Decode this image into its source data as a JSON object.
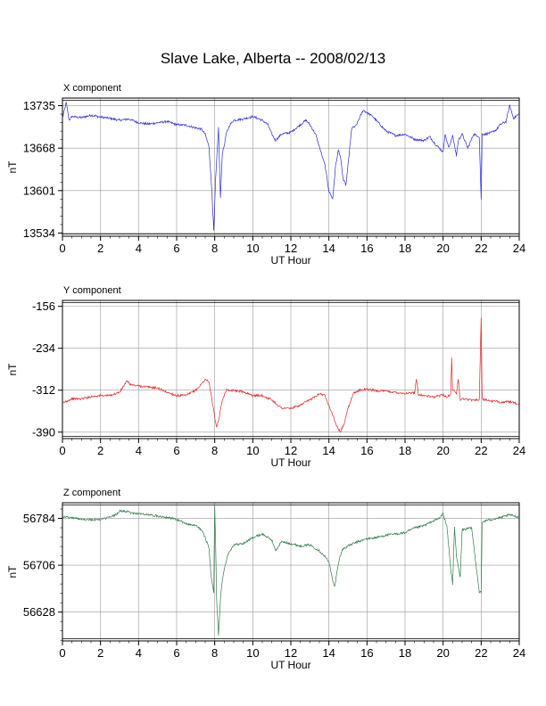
{
  "page": {
    "title": "Slave Lake, Alberta -- 2008/02/13"
  },
  "chart_data": [
    {
      "type": "line",
      "panel_title": "X component",
      "xlabel": "UT Hour",
      "ylabel": "nT",
      "xlim": [
        0,
        24
      ],
      "ylim": [
        13529,
        13747
      ],
      "xticks": [
        "0",
        "2",
        "4",
        "6",
        "8",
        "10",
        "12",
        "14",
        "16",
        "18",
        "20",
        "22",
        "24"
      ],
      "yticks": [
        "13534",
        "13601",
        "13668",
        "13735"
      ],
      "grid": true,
      "color": "#2b2bdc",
      "series": [
        {
          "x": [
            0,
            0.2,
            0.35,
            0.5,
            1,
            1.5,
            2,
            2.5,
            3,
            3.5,
            4,
            4.5,
            5,
            5.5,
            6,
            6.5,
            7,
            7.3,
            7.5,
            7.7,
            7.85,
            7.95,
            8.05,
            8.2,
            8.3,
            8.4,
            8.5,
            8.6,
            8.8,
            9,
            9.5,
            10,
            10.5,
            10.8,
            11,
            11.2,
            11.5,
            12,
            12.5,
            12.8,
            13,
            13.3,
            13.6,
            13.8,
            14,
            14.2,
            14.35,
            14.5,
            14.6,
            14.75,
            14.9,
            15,
            15.2,
            15.4,
            15.6,
            15.8,
            16,
            16.3,
            16.6,
            17,
            17.5,
            18,
            18.5,
            19,
            19.3,
            19.6,
            20,
            20.1,
            20.3,
            20.5,
            20.7,
            20.8,
            21,
            21.3,
            21.6,
            21.9,
            22,
            22.05,
            22.2,
            22.5,
            22.8,
            23,
            23.3,
            23.5,
            23.7,
            24
          ],
          "values": [
            13715,
            13740,
            13712,
            13718,
            13716,
            13720,
            13717,
            13715,
            13712,
            13714,
            13708,
            13706,
            13708,
            13710,
            13705,
            13704,
            13700,
            13698,
            13690,
            13670,
            13600,
            13537,
            13620,
            13700,
            13588,
            13660,
            13672,
            13690,
            13705,
            13712,
            13714,
            13718,
            13712,
            13705,
            13690,
            13680,
            13690,
            13693,
            13705,
            13712,
            13705,
            13690,
            13660,
            13640,
            13600,
            13588,
            13640,
            13665,
            13655,
            13618,
            13610,
            13640,
            13700,
            13702,
            13715,
            13728,
            13724,
            13718,
            13708,
            13695,
            13688,
            13690,
            13682,
            13680,
            13686,
            13674,
            13662,
            13690,
            13668,
            13688,
            13656,
            13680,
            13690,
            13668,
            13690,
            13686,
            13586,
            13690,
            13690,
            13692,
            13697,
            13705,
            13710,
            13735,
            13715,
            13722
          ]
        }
      ]
    },
    {
      "type": "line",
      "panel_title": "Y component",
      "xlabel": "UT Hour",
      "ylabel": "nT",
      "xlim": [
        0,
        24
      ],
      "ylim": [
        -402,
        -145
      ],
      "xticks": [
        "0",
        "2",
        "4",
        "6",
        "8",
        "10",
        "12",
        "14",
        "16",
        "18",
        "20",
        "22",
        "24"
      ],
      "yticks": [
        "-156",
        "-234",
        "-312",
        "-390"
      ],
      "grid": true,
      "color": "#e02828",
      "series": [
        {
          "x": [
            0,
            0.5,
            1,
            1.5,
            2,
            2.5,
            3,
            3.2,
            3.4,
            3.6,
            4,
            4.5,
            5,
            5.5,
            6,
            6.5,
            7,
            7.2,
            7.5,
            7.7,
            7.9,
            8.1,
            8.25,
            8.4,
            8.6,
            9,
            9.5,
            10,
            10.5,
            11,
            11.5,
            12,
            12.5,
            13,
            13.5,
            13.8,
            14,
            14.2,
            14.4,
            14.6,
            14.8,
            15,
            15.3,
            15.6,
            16,
            16.5,
            17,
            17.5,
            18,
            18.5,
            18.6,
            18.7,
            19,
            19.5,
            20,
            20.2,
            20.4,
            20.45,
            20.5,
            20.7,
            20.8,
            20.9,
            21,
            21.5,
            21.9,
            22,
            22.05,
            22.2,
            22.5,
            23,
            23.5,
            24
          ],
          "values": [
            -336,
            -328,
            -328,
            -324,
            -322,
            -322,
            -316,
            -305,
            -295,
            -302,
            -304,
            -306,
            -308,
            -316,
            -322,
            -322,
            -312,
            -305,
            -292,
            -296,
            -340,
            -383,
            -360,
            -330,
            -312,
            -312,
            -315,
            -322,
            -322,
            -330,
            -345,
            -346,
            -340,
            -330,
            -318,
            -322,
            -340,
            -358,
            -378,
            -390,
            -375,
            -345,
            -318,
            -312,
            -310,
            -313,
            -314,
            -316,
            -318,
            -317,
            -290,
            -320,
            -322,
            -325,
            -320,
            -325,
            -320,
            -253,
            -310,
            -318,
            -290,
            -330,
            -328,
            -330,
            -330,
            -175,
            -328,
            -330,
            -332,
            -334,
            -334,
            -338
          ]
        }
      ]
    },
    {
      "type": "line",
      "panel_title": "Z component",
      "xlabel": "UT Hour",
      "ylabel": "nT",
      "xlim": [
        0,
        24
      ],
      "ylim": [
        56580,
        56810
      ],
      "xticks": [
        "0",
        "2",
        "4",
        "6",
        "8",
        "10",
        "12",
        "14",
        "16",
        "18",
        "20",
        "22",
        "24"
      ],
      "yticks": [
        "56628",
        "56706",
        "56784"
      ],
      "grid": true,
      "color": "#2e7d4a",
      "series": [
        {
          "x": [
            0,
            0.5,
            1,
            1.5,
            2,
            2.5,
            2.8,
            3,
            3.3,
            3.6,
            4,
            4.5,
            5,
            5.5,
            6,
            6.3,
            6.6,
            7,
            7.3,
            7.5,
            7.7,
            7.8,
            7.95,
            8,
            8.05,
            8.1,
            8.2,
            8.3,
            8.4,
            8.5,
            8.7,
            9,
            9.5,
            10,
            10.5,
            11,
            11.2,
            11.5,
            12,
            12.5,
            13,
            13.5,
            13.8,
            14,
            14.2,
            14.3,
            14.5,
            14.7,
            15,
            15.5,
            16,
            16.5,
            17,
            17.5,
            18,
            18.5,
            19,
            19.5,
            19.8,
            20,
            20.2,
            20.4,
            20.5,
            20.6,
            20.7,
            20.9,
            21,
            21.5,
            21.9,
            22,
            22.05,
            22.2,
            22.5,
            23,
            23.5,
            24
          ],
          "values": [
            56787,
            56785,
            56783,
            56782,
            56782,
            56786,
            56790,
            56796,
            56796,
            56793,
            56792,
            56790,
            56788,
            56786,
            56782,
            56778,
            56774,
            56772,
            56765,
            56752,
            56735,
            56690,
            56660,
            56805,
            56740,
            56650,
            56590,
            56650,
            56680,
            56700,
            56725,
            56740,
            56742,
            56752,
            56758,
            56748,
            56730,
            56745,
            56742,
            56738,
            56740,
            56730,
            56720,
            56712,
            56680,
            56670,
            56710,
            56732,
            56738,
            56745,
            56750,
            56752,
            56756,
            56758,
            56760,
            56768,
            56772,
            56780,
            56784,
            56792,
            56770,
            56700,
            56675,
            56770,
            56720,
            56686,
            56765,
            56768,
            56662,
            56660,
            56777,
            56780,
            56782,
            56785,
            56790,
            56786
          ]
        }
      ]
    }
  ]
}
